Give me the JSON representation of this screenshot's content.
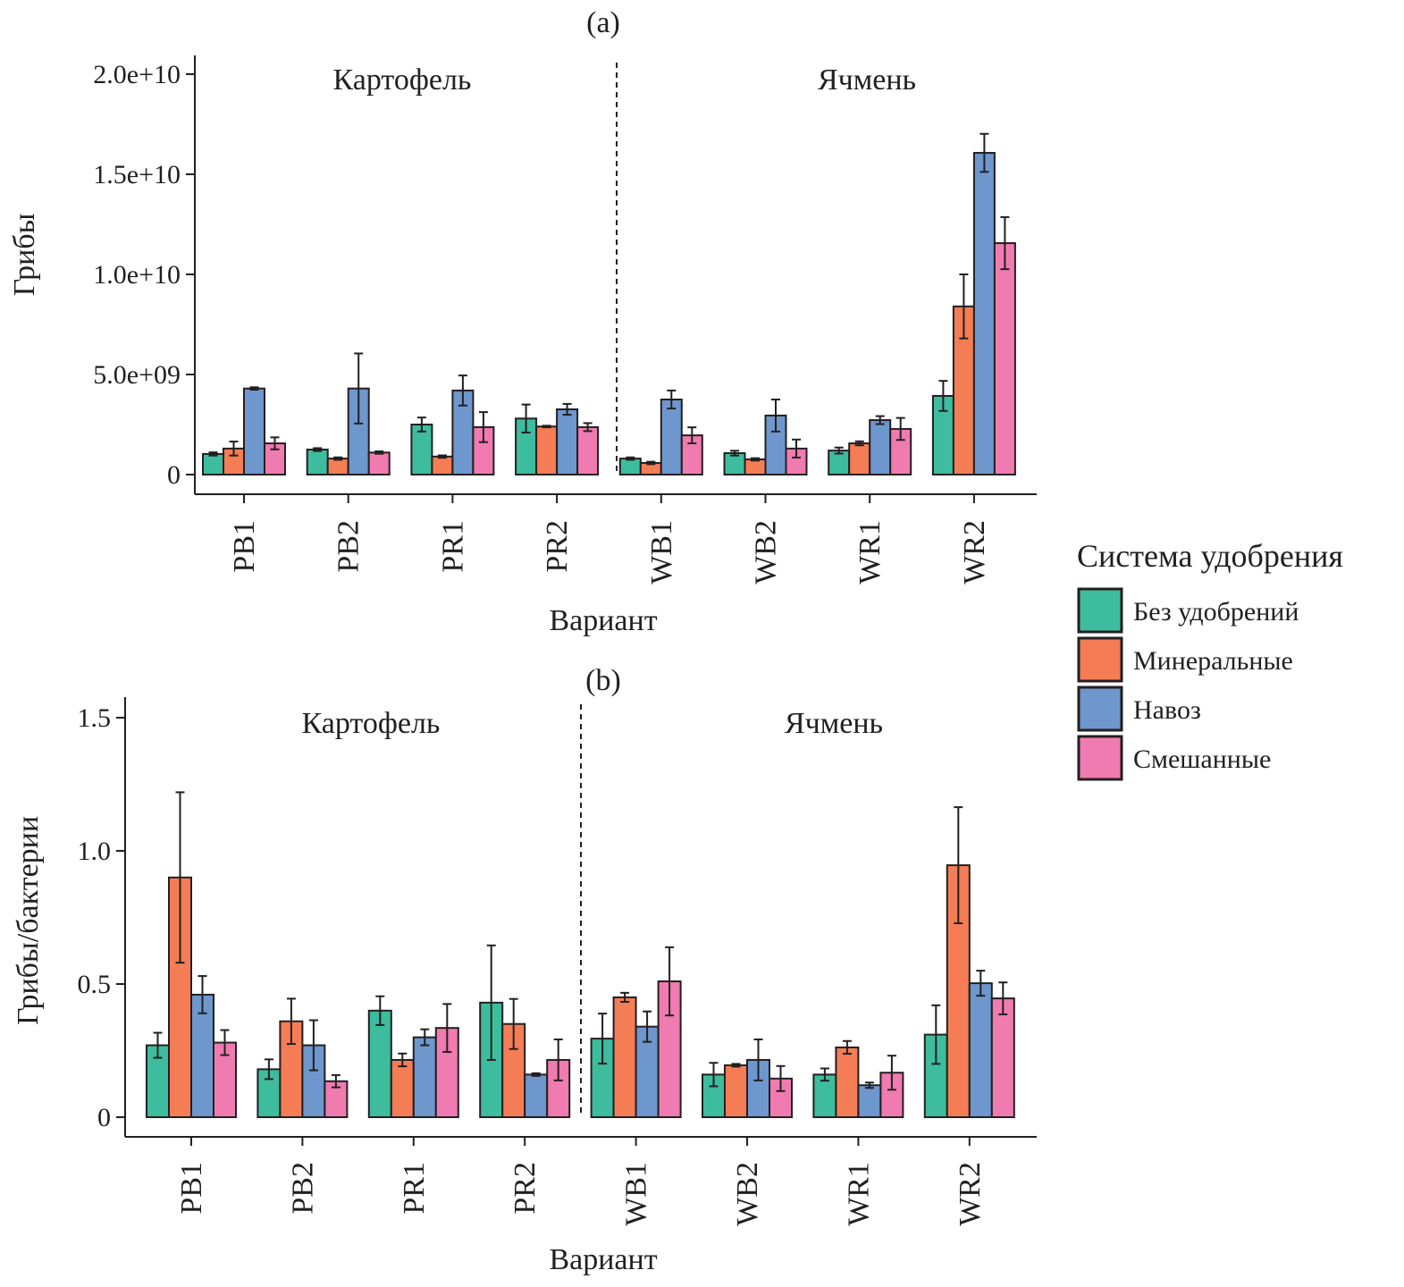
{
  "legend": {
    "title": "Система удобрения",
    "entries": [
      {
        "name": "Без удобрений",
        "color": "#3dbd9d"
      },
      {
        "name": "Минеральные",
        "color": "#f47d55"
      },
      {
        "name": "Навоз",
        "color": "#6d97cd"
      },
      {
        "name": "Смешанные",
        "color": "#f07bb0"
      }
    ],
    "placement": "right"
  },
  "chart_data": [
    {
      "type": "bar",
      "title": "(a)",
      "xlabel": "Вариант",
      "ylabel": "Грибы",
      "facets": [
        "Картофель",
        "Ячмень"
      ],
      "categories": [
        "PB1",
        "PB2",
        "PR1",
        "PR2",
        "WB1",
        "WB2",
        "WR1",
        "WR2"
      ],
      "yticks": [
        0,
        5000000000,
        10000000000,
        15000000000,
        20000000000
      ],
      "ytick_labels": [
        "0",
        "5.0e+09",
        "1.0e+10",
        "1.5e+10",
        "2.0e+10"
      ],
      "ylim": [
        0,
        21000000000
      ],
      "series": [
        {
          "name": "Без удобрений",
          "values": [
            1030000000.0,
            1250000000.0,
            2500000000.0,
            2800000000.0,
            800000000.0,
            1070000000.0,
            1200000000.0,
            3930000000.0
          ],
          "errors": [
            80000000.0,
            70000000.0,
            350000000.0,
            700000000.0,
            60000000.0,
            120000000.0,
            150000000.0,
            750000000.0
          ]
        },
        {
          "name": "Минеральные",
          "values": [
            1300000000.0,
            800000000.0,
            900000000.0,
            2400000000.0,
            580000000.0,
            760000000.0,
            1560000000.0,
            8400000000.0
          ],
          "errors": [
            350000000.0,
            60000000.0,
            60000000.0,
            40000000.0,
            60000000.0,
            60000000.0,
            100000000.0,
            1600000000.0
          ]
        },
        {
          "name": "Навоз",
          "values": [
            4300000000.0,
            4300000000.0,
            4200000000.0,
            3260000000.0,
            3750000000.0,
            2950000000.0,
            2720000000.0,
            16070000000.0
          ],
          "errors": [
            60000000.0,
            1750000000.0,
            750000000.0,
            270000000.0,
            450000000.0,
            800000000.0,
            200000000.0,
            950000000.0
          ]
        },
        {
          "name": "Смешанные",
          "values": [
            1560000000.0,
            1100000000.0,
            2370000000.0,
            2370000000.0,
            1960000000.0,
            1300000000.0,
            2280000000.0,
            11560000000.0
          ],
          "errors": [
            300000000.0,
            60000000.0,
            750000000.0,
            200000000.0,
            400000000.0,
            450000000.0,
            550000000.0,
            1300000000.0
          ]
        }
      ]
    },
    {
      "type": "bar",
      "title": "(b)",
      "xlabel": "Вариант",
      "ylabel": "Грибы/бактерии",
      "facets": [
        "Картофель",
        "Ячмень"
      ],
      "categories": [
        "PB1",
        "PB2",
        "PR1",
        "PR2",
        "WB1",
        "WB2",
        "WR1",
        "WR2"
      ],
      "yticks": [
        0,
        0.5,
        1.0,
        1.5
      ],
      "ytick_labels": [
        "0",
        "0.5",
        "1.0",
        "1.5"
      ],
      "ylim": [
        0,
        1.57
      ],
      "series": [
        {
          "name": "Без удобрений",
          "values": [
            0.27,
            0.18,
            0.4,
            0.43,
            0.295,
            0.16,
            0.16,
            0.31
          ],
          "errors": [
            0.047,
            0.037,
            0.054,
            0.215,
            0.094,
            0.044,
            0.023,
            0.11
          ]
        },
        {
          "name": "Минеральные",
          "values": [
            0.9,
            0.36,
            0.215,
            0.35,
            0.45,
            0.195,
            0.262,
            0.946
          ],
          "errors": [
            0.32,
            0.085,
            0.024,
            0.094,
            0.017,
            0.005,
            0.024,
            0.218
          ]
        },
        {
          "name": "Навоз",
          "values": [
            0.46,
            0.27,
            0.3,
            0.16,
            0.34,
            0.215,
            0.12,
            0.503
          ],
          "errors": [
            0.07,
            0.094,
            0.03,
            0.005,
            0.057,
            0.077,
            0.01,
            0.047
          ]
        },
        {
          "name": "Смешанные",
          "values": [
            0.28,
            0.135,
            0.335,
            0.215,
            0.51,
            0.145,
            0.167,
            0.446
          ],
          "errors": [
            0.047,
            0.023,
            0.09,
            0.077,
            0.128,
            0.047,
            0.064,
            0.06
          ]
        }
      ]
    }
  ]
}
